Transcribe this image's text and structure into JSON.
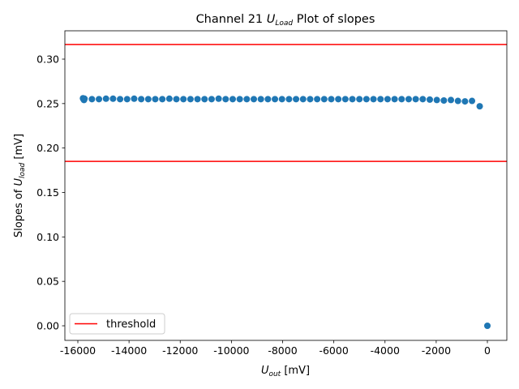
{
  "chart_data": {
    "type": "scatter",
    "title": {
      "prefix": "Channel 21 ",
      "symbol": "U",
      "subscript": "Load",
      "suffix": " Plot of slopes"
    },
    "xlabel": {
      "symbol": "U",
      "subscript": "out",
      "suffix": " [mV]"
    },
    "ylabel": {
      "prefix": "Slopes of ",
      "symbol": "U",
      "subscript": "load",
      "suffix": " [mV]"
    },
    "xlim": [
      -16507,
      760
    ],
    "ylim": [
      -0.0164,
      0.3319
    ],
    "xticks": [
      -16000,
      -14000,
      -12000,
      -10000,
      -8000,
      -6000,
      -4000,
      -2000,
      0
    ],
    "yticks": [
      {
        "value": 0,
        "label": "0.00"
      },
      {
        "value": 0.05,
        "label": "0.05"
      },
      {
        "value": 0.1,
        "label": "0.10"
      },
      {
        "value": 0.15,
        "label": "0.15"
      },
      {
        "value": 0.2,
        "label": "0.20"
      },
      {
        "value": 0.25,
        "label": "0.25"
      },
      {
        "value": 0.3,
        "label": "0.30"
      }
    ],
    "legend": "lower left",
    "series": [
      {
        "color": "#1f77b4",
        "x": [
          -15800,
          -15780,
          -15760,
          -15740,
          -15450,
          -15175,
          -14900,
          -14625,
          -14350,
          -14075,
          -13800,
          -13525,
          -13250,
          -12975,
          -12700,
          -12425,
          -12150,
          -11875,
          -11600,
          -11325,
          -11050,
          -10775,
          -10500,
          -10225,
          -9950,
          -9675,
          -9400,
          -9125,
          -8850,
          -8575,
          -8300,
          -8025,
          -7750,
          -7475,
          -7200,
          -6925,
          -6650,
          -6375,
          -6100,
          -5825,
          -5550,
          -5275,
          -5000,
          -4725,
          -4450,
          -4175,
          -3900,
          -3625,
          -3350,
          -3075,
          -2800,
          -2525,
          -2250,
          -1975,
          -1700,
          -1425,
          -1150,
          -875,
          -600,
          -300,
          0
        ],
        "values": [
          0.256,
          0.255,
          0.254,
          0.2555,
          0.255,
          0.255,
          0.2555,
          0.2555,
          0.255,
          0.255,
          0.2555,
          0.255,
          0.255,
          0.255,
          0.255,
          0.2555,
          0.255,
          0.255,
          0.255,
          0.255,
          0.255,
          0.255,
          0.2555,
          0.255,
          0.255,
          0.255,
          0.255,
          0.255,
          0.255,
          0.255,
          0.255,
          0.255,
          0.255,
          0.255,
          0.255,
          0.255,
          0.255,
          0.255,
          0.255,
          0.255,
          0.255,
          0.255,
          0.255,
          0.255,
          0.255,
          0.255,
          0.255,
          0.255,
          0.255,
          0.255,
          0.255,
          0.255,
          0.2545,
          0.254,
          0.2535,
          0.254,
          0.253,
          0.2525,
          0.253,
          0.247,
          0.0
        ]
      }
    ],
    "hlines": {
      "name": "threshold",
      "color": "#ff0000",
      "values": [
        0.3165,
        0.185
      ]
    }
  }
}
